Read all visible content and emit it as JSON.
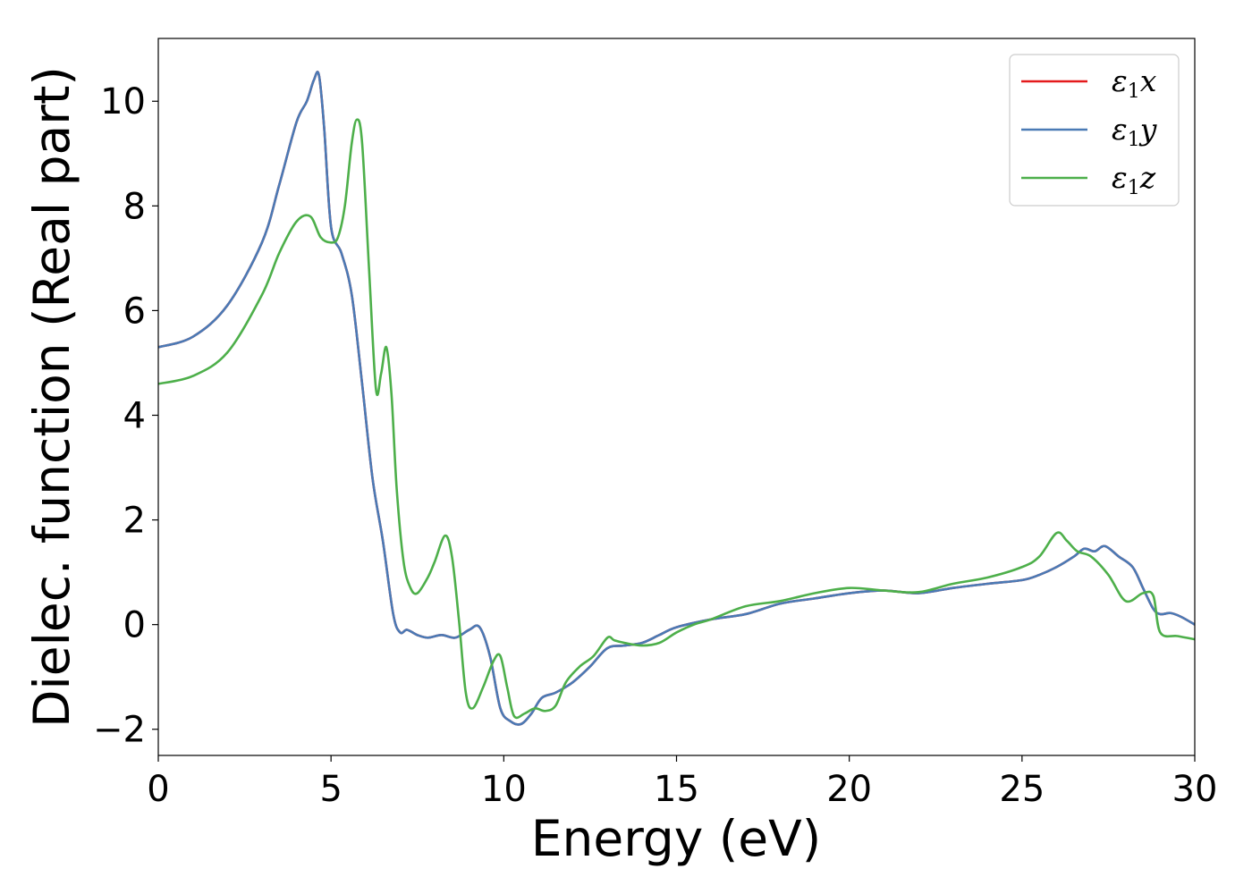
{
  "chart_data": {
    "type": "line",
    "title": "",
    "xlabel": "Energy (eV)",
    "ylabel": "Dielec. function (Real part)",
    "xlim": [
      0,
      30
    ],
    "ylim": [
      -2.5,
      11.2
    ],
    "xticks": [
      0,
      5,
      10,
      15,
      20,
      25,
      30
    ],
    "xtick_labels": [
      "0",
      "5",
      "10",
      "15",
      "20",
      "25",
      "30"
    ],
    "yticks": [
      -2,
      0,
      2,
      4,
      6,
      8,
      10
    ],
    "ytick_labels": [
      "−2",
      "0",
      "2",
      "4",
      "6",
      "8",
      "10"
    ],
    "grid": false,
    "legend_position": "top-right",
    "series": [
      {
        "name": "ε1x",
        "symbol": "ε",
        "sub": "1",
        "axis": "x",
        "color": "#e41a1c",
        "x": [
          0,
          1,
          2,
          3,
          3.5,
          4,
          4.3,
          4.5,
          4.65,
          4.8,
          5.0,
          5.3,
          5.6,
          5.9,
          6.2,
          6.5,
          6.8,
          7.0,
          7.2,
          7.5,
          7.8,
          8.2,
          8.6,
          9.0,
          9.3,
          9.6,
          9.9,
          10.2,
          10.5,
          10.8,
          11.1,
          11.5,
          12.0,
          12.5,
          13.0,
          13.5,
          14.0,
          14.5,
          15,
          16,
          17,
          18,
          19,
          20,
          21,
          22,
          23,
          24,
          25,
          25.5,
          26,
          26.5,
          26.8,
          27.1,
          27.4,
          27.8,
          28.2,
          28.5,
          28.8,
          29.0,
          29.3,
          29.6,
          30
        ],
        "y": [
          5.3,
          5.5,
          6.1,
          7.3,
          8.4,
          9.6,
          10.0,
          10.4,
          10.5,
          9.5,
          7.6,
          7.1,
          6.3,
          4.6,
          2.8,
          1.6,
          0.2,
          -0.15,
          -0.1,
          -0.2,
          -0.25,
          -0.2,
          -0.25,
          -0.1,
          -0.05,
          -0.6,
          -1.6,
          -1.85,
          -1.9,
          -1.7,
          -1.4,
          -1.3,
          -1.1,
          -0.8,
          -0.45,
          -0.4,
          -0.35,
          -0.2,
          -0.05,
          0.1,
          0.2,
          0.4,
          0.5,
          0.6,
          0.65,
          0.6,
          0.7,
          0.78,
          0.85,
          0.95,
          1.1,
          1.3,
          1.45,
          1.4,
          1.5,
          1.3,
          1.1,
          0.7,
          0.3,
          0.2,
          0.22,
          0.15,
          0.0
        ]
      },
      {
        "name": "ε1y",
        "symbol": "ε",
        "sub": "1",
        "axis": "y",
        "color": "#4a7ab5",
        "x": [
          0,
          1,
          2,
          3,
          3.5,
          4,
          4.3,
          4.5,
          4.65,
          4.8,
          5.0,
          5.3,
          5.6,
          5.9,
          6.2,
          6.5,
          6.8,
          7.0,
          7.2,
          7.5,
          7.8,
          8.2,
          8.6,
          9.0,
          9.3,
          9.6,
          9.9,
          10.2,
          10.5,
          10.8,
          11.1,
          11.5,
          12.0,
          12.5,
          13.0,
          13.5,
          14.0,
          14.5,
          15,
          16,
          17,
          18,
          19,
          20,
          21,
          22,
          23,
          24,
          25,
          25.5,
          26,
          26.5,
          26.8,
          27.1,
          27.4,
          27.8,
          28.2,
          28.5,
          28.8,
          29.0,
          29.3,
          29.6,
          30
        ],
        "y": [
          5.3,
          5.5,
          6.1,
          7.3,
          8.4,
          9.6,
          10.0,
          10.4,
          10.5,
          9.5,
          7.6,
          7.1,
          6.3,
          4.6,
          2.8,
          1.6,
          0.2,
          -0.15,
          -0.1,
          -0.2,
          -0.25,
          -0.2,
          -0.25,
          -0.1,
          -0.05,
          -0.6,
          -1.6,
          -1.85,
          -1.9,
          -1.7,
          -1.4,
          -1.3,
          -1.1,
          -0.8,
          -0.45,
          -0.4,
          -0.35,
          -0.2,
          -0.05,
          0.1,
          0.2,
          0.4,
          0.5,
          0.6,
          0.65,
          0.6,
          0.7,
          0.78,
          0.85,
          0.95,
          1.1,
          1.3,
          1.45,
          1.4,
          1.5,
          1.3,
          1.1,
          0.7,
          0.3,
          0.2,
          0.22,
          0.15,
          0.0
        ]
      },
      {
        "name": "ε1z",
        "symbol": "ε",
        "sub": "1",
        "axis": "z",
        "color": "#4daf4a",
        "x": [
          0,
          1,
          2,
          3,
          3.5,
          4.0,
          4.4,
          4.7,
          5.0,
          5.2,
          5.4,
          5.6,
          5.75,
          5.9,
          6.1,
          6.3,
          6.45,
          6.6,
          6.75,
          6.9,
          7.1,
          7.3,
          7.5,
          7.8,
          8.0,
          8.3,
          8.5,
          8.7,
          8.9,
          9.1,
          9.4,
          9.7,
          9.9,
          10.1,
          10.3,
          10.6,
          10.9,
          11.2,
          11.5,
          11.8,
          12.2,
          12.6,
          13.0,
          13.2,
          13.5,
          14.0,
          14.5,
          15,
          15.5,
          16,
          17,
          18,
          19,
          20,
          21,
          22,
          23,
          24,
          25,
          25.5,
          26.0,
          26.3,
          26.6,
          27.0,
          27.5,
          28.0,
          28.5,
          28.8,
          29.0,
          29.5,
          30
        ],
        "y": [
          4.6,
          4.75,
          5.2,
          6.3,
          7.1,
          7.7,
          7.8,
          7.4,
          7.3,
          7.4,
          8.0,
          9.2,
          9.65,
          9.2,
          6.8,
          4.5,
          4.8,
          5.3,
          4.4,
          2.6,
          1.2,
          0.7,
          0.6,
          0.9,
          1.2,
          1.7,
          1.3,
          0.1,
          -1.3,
          -1.6,
          -1.2,
          -0.7,
          -0.6,
          -1.2,
          -1.75,
          -1.7,
          -1.6,
          -1.65,
          -1.55,
          -1.1,
          -0.8,
          -0.6,
          -0.25,
          -0.3,
          -0.35,
          -0.4,
          -0.35,
          -0.15,
          0.0,
          0.1,
          0.35,
          0.45,
          0.6,
          0.7,
          0.65,
          0.62,
          0.78,
          0.9,
          1.1,
          1.3,
          1.75,
          1.6,
          1.4,
          1.3,
          0.95,
          0.45,
          0.6,
          0.55,
          -0.15,
          -0.22,
          -0.28
        ]
      }
    ]
  }
}
